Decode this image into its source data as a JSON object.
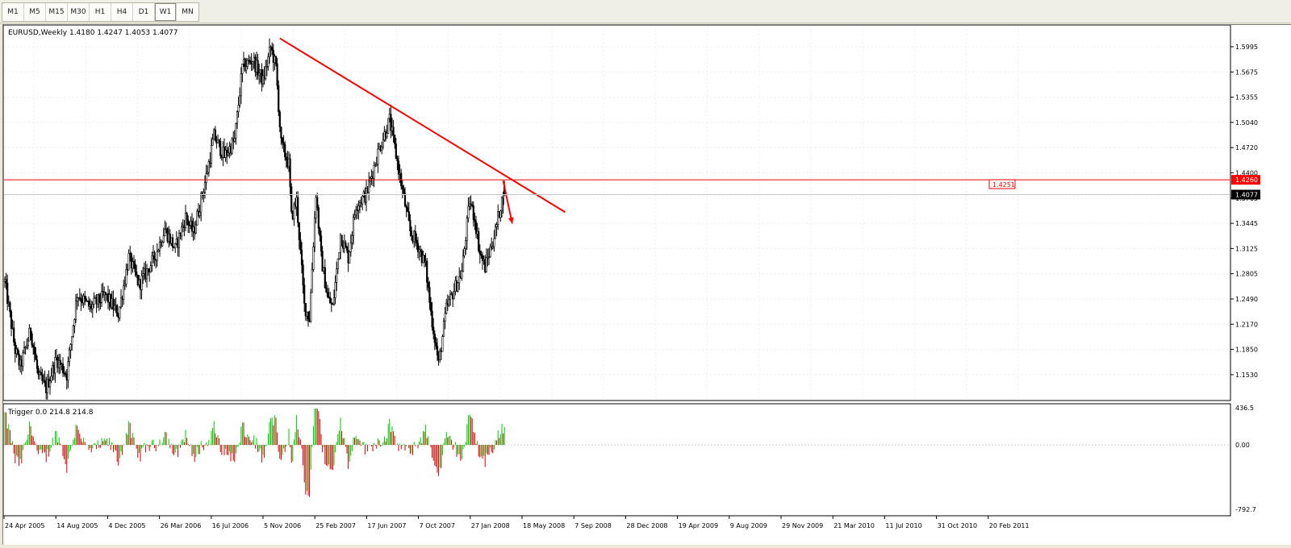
{
  "toolbar": {
    "timeframes": [
      {
        "label": "M1",
        "active": false
      },
      {
        "label": "M5",
        "active": false
      },
      {
        "label": "M15",
        "active": false
      },
      {
        "label": "M30",
        "active": false
      },
      {
        "label": "H1",
        "active": false
      },
      {
        "label": "H4",
        "active": false
      },
      {
        "label": "D1",
        "active": false
      },
      {
        "label": "W1",
        "active": true
      },
      {
        "label": "MN",
        "active": false
      }
    ]
  },
  "main_chart": {
    "header": "EURUSD,Weekly  1.4180 1.4247 1.4053 1.4077",
    "price_labels": [
      "1.5995",
      "1.5675",
      "1.5355",
      "1.5040",
      "1.4720",
      "1.4400",
      "1.3765",
      "1.3445",
      "1.3125",
      "1.2805",
      "1.2490",
      "1.2170",
      "1.1850",
      "1.1530"
    ],
    "hline_label": "1.4260",
    "current_price_label": "1.4077",
    "trendline_label": "1.4251"
  },
  "indicator": {
    "header": "Trigger 0.0 214.8 214.8",
    "scale_labels": [
      "436.5",
      "0.00",
      "-792.7"
    ]
  },
  "time_axis": {
    "labels": [
      "24 Apr 2005",
      "14 Aug 2005",
      "4 Dec 2005",
      "26 Mar 2006",
      "16 Jul 2006",
      "5 Nov 2006",
      "25 Feb 2007",
      "17 Jun 2007",
      "7 Oct 2007",
      "27 Jan 2008",
      "18 May 2008",
      "7 Sep 2008",
      "28 Dec 2008",
      "19 Apr 2009",
      "9 Aug 2009",
      "29 Nov 2009",
      "21 Mar 2010",
      "11 Jul 2010",
      "31 Oct 2010",
      "20 Feb 2011"
    ]
  },
  "chart_data": {
    "type": "candlestick",
    "symbol": "EURUSD",
    "timeframe": "Weekly",
    "last_bar": {
      "open": 1.418,
      "high": 1.4247,
      "low": 1.4053,
      "close": 1.4077
    },
    "ylim": [
      1.153,
      1.6155
    ],
    "price_path_anchors": [
      {
        "week": 0,
        "price": 1.3
      },
      {
        "week": 8,
        "price": 1.215
      },
      {
        "week": 12,
        "price": 1.195
      },
      {
        "week": 20,
        "price": 1.24
      },
      {
        "week": 26,
        "price": 1.182
      },
      {
        "week": 32,
        "price": 1.168
      },
      {
        "week": 40,
        "price": 1.205
      },
      {
        "week": 48,
        "price": 1.185
      },
      {
        "week": 56,
        "price": 1.285
      },
      {
        "week": 66,
        "price": 1.268
      },
      {
        "week": 78,
        "price": 1.283
      },
      {
        "week": 88,
        "price": 1.26
      },
      {
        "week": 96,
        "price": 1.33
      },
      {
        "week": 104,
        "price": 1.296
      },
      {
        "week": 116,
        "price": 1.33
      },
      {
        "week": 124,
        "price": 1.365
      },
      {
        "week": 132,
        "price": 1.34
      },
      {
        "week": 140,
        "price": 1.38
      },
      {
        "week": 146,
        "price": 1.36
      },
      {
        "week": 156,
        "price": 1.43
      },
      {
        "week": 162,
        "price": 1.48
      },
      {
        "week": 170,
        "price": 1.455
      },
      {
        "week": 178,
        "price": 1.475
      },
      {
        "week": 184,
        "price": 1.565
      },
      {
        "week": 192,
        "price": 1.575
      },
      {
        "week": 200,
        "price": 1.548
      },
      {
        "week": 206,
        "price": 1.59
      },
      {
        "week": 210,
        "price": 1.565
      },
      {
        "week": 214,
        "price": 1.47
      },
      {
        "week": 220,
        "price": 1.445
      },
      {
        "week": 222,
        "price": 1.38
      },
      {
        "week": 226,
        "price": 1.4
      },
      {
        "week": 232,
        "price": 1.27
      },
      {
        "week": 236,
        "price": 1.255
      },
      {
        "week": 241,
        "price": 1.41
      },
      {
        "week": 245,
        "price": 1.33
      },
      {
        "week": 250,
        "price": 1.28
      },
      {
        "week": 254,
        "price": 1.268
      },
      {
        "week": 260,
        "price": 1.358
      },
      {
        "week": 266,
        "price": 1.33
      },
      {
        "week": 272,
        "price": 1.395
      },
      {
        "week": 280,
        "price": 1.408
      },
      {
        "week": 290,
        "price": 1.465
      },
      {
        "week": 298,
        "price": 1.5
      },
      {
        "week": 304,
        "price": 1.448
      },
      {
        "week": 310,
        "price": 1.395
      },
      {
        "week": 314,
        "price": 1.362
      },
      {
        "week": 320,
        "price": 1.345
      },
      {
        "week": 326,
        "price": 1.318
      },
      {
        "week": 330,
        "price": 1.262
      },
      {
        "week": 336,
        "price": 1.198
      },
      {
        "week": 342,
        "price": 1.266
      },
      {
        "week": 348,
        "price": 1.29
      },
      {
        "week": 354,
        "price": 1.312
      },
      {
        "week": 360,
        "price": 1.4
      },
      {
        "week": 364,
        "price": 1.378
      },
      {
        "week": 368,
        "price": 1.335
      },
      {
        "week": 372,
        "price": 1.318
      },
      {
        "week": 376,
        "price": 1.34
      },
      {
        "week": 380,
        "price": 1.362
      },
      {
        "week": 384,
        "price": 1.395
      },
      {
        "week": 387,
        "price": 1.408
      }
    ],
    "horizontal_line": 1.426,
    "trendline": {
      "from": {
        "week": 213,
        "price": 1.601
      },
      "to": {
        "week": 434,
        "price": 1.386
      }
    },
    "arrow": {
      "from": {
        "week": 386,
        "price": 1.425
      },
      "to": {
        "week": 393,
        "price": 1.372
      }
    },
    "indicator_range": [
      -792.7,
      436.5
    ],
    "indicator_last_value": 214.8,
    "colors": {
      "trend": "#ff0000",
      "positive": "#00c800",
      "negative": "#d00000",
      "candle": "#000000"
    }
  }
}
